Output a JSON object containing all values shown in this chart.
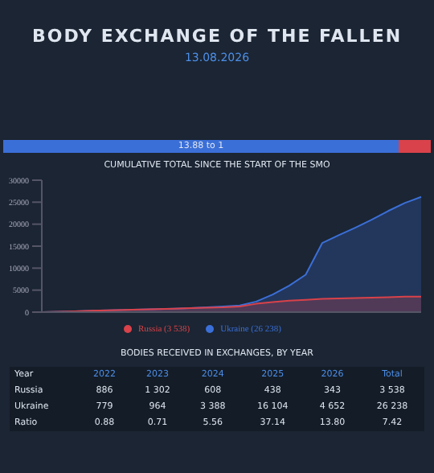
{
  "chart_data": {
    "type": "area",
    "title": "CUMULATIVE TOTAL SINCE THE START OF THE SMO",
    "categories": [
      null,
      null,
      null,
      null,
      null,
      null,
      null,
      null,
      null,
      null,
      null,
      null,
      null,
      null,
      null,
      null,
      null,
      null,
      null,
      null,
      null,
      null,
      null,
      null
    ],
    "series": [
      {
        "name": "Ukraine (26 238)",
        "color": "#3b6fd8",
        "values": [
          0,
          100,
          200,
          300,
          400,
          500,
          600,
          700,
          800,
          900,
          1100,
          1300,
          1500,
          2400,
          4000,
          6000,
          8500,
          15700,
          17500,
          19200,
          21000,
          23000,
          24800,
          26200
        ]
      },
      {
        "name": "Russia (3 538)",
        "color": "#d9424a",
        "values": [
          0,
          100,
          200,
          300,
          400,
          500,
          600,
          700,
          800,
          900,
          1000,
          1100,
          1300,
          1900,
          2300,
          2600,
          2800,
          3000,
          3100,
          3200,
          3300,
          3400,
          3500,
          3500
        ]
      }
    ],
    "ylim": [
      0,
      30000
    ],
    "yticks": [
      0,
      5000,
      10000,
      15000,
      20000,
      25000,
      30000
    ],
    "tick_labels": "y",
    "legend": "bottom",
    "annotations": [
      "BODY EXCHANGE OF THE FALLEN",
      "13.08.2026",
      "13.88 to 1",
      "BODIES RECEIVED IN EXCHANGES, BY YEAR",
      "Year",
      "2022",
      "2023",
      "2024",
      "2025",
      "2026",
      "Total",
      "Russia",
      "886",
      "1 302",
      "608",
      "438",
      "343",
      "3 538",
      "Ukraine",
      "779",
      "964",
      "3 388",
      "16 104",
      "4 652",
      "26 238",
      "Ratio",
      "0.88",
      "0.71",
      "5.56",
      "37.14",
      "13.80",
      "7.42"
    ]
  }
}
